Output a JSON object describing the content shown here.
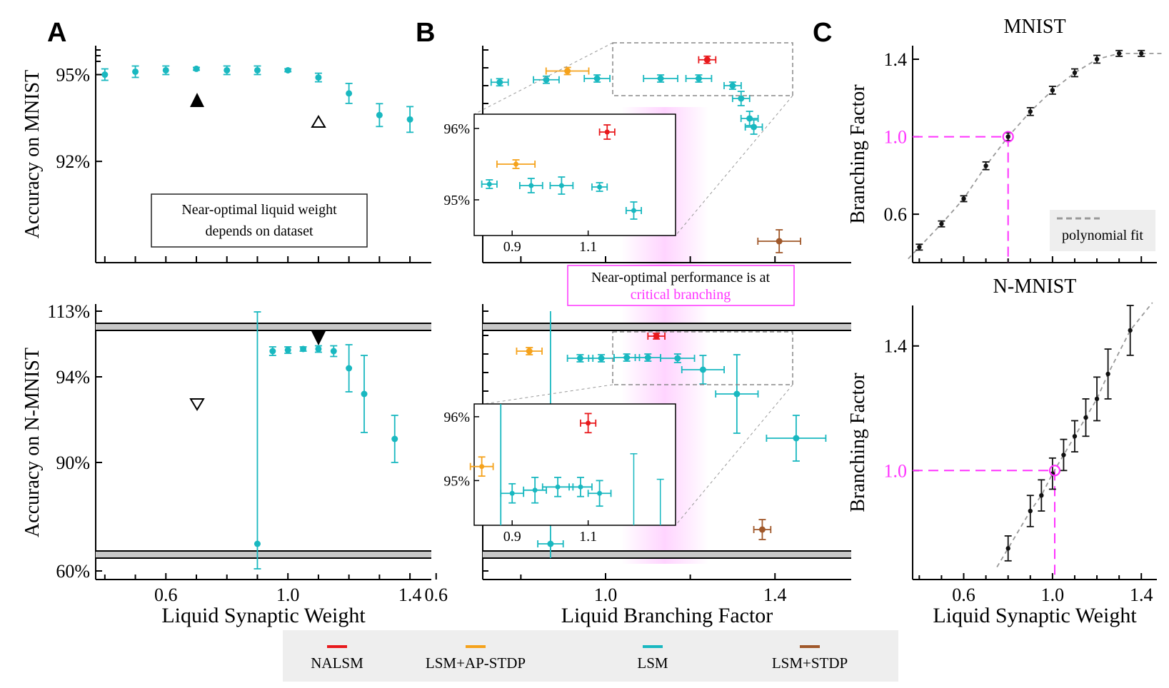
{
  "panel_labels": {
    "a": "A",
    "b": "B",
    "c": "C"
  },
  "colors": {
    "lsm": "#19b8c0",
    "nalsm": "#e8191c",
    "ap_stdp": "#f5a21b",
    "stdp": "#a0582a",
    "critical": "#ff33ff",
    "black": "#111111"
  },
  "annotations": {
    "dataset_box_line1": "Near-optimal liquid weight",
    "dataset_box_line2": "depends on dataset",
    "critical_box_line1": "Near-optimal performance is at",
    "critical_box_line2": "critical branching"
  },
  "legend": {
    "items": [
      {
        "label": "NALSM",
        "color": "#e8191c"
      },
      {
        "label": "LSM+AP-STDP",
        "color": "#f5a21b"
      },
      {
        "label": "LSM",
        "color": "#19b8c0"
      },
      {
        "label": "LSM+STDP",
        "color": "#a0582a"
      }
    ]
  },
  "chart_data": [
    {
      "id": "A-top",
      "type": "scatter",
      "title": "",
      "xlabel": "",
      "ylabel": "Accuracy on MNIST",
      "xlim": [
        0.37,
        1.47
      ],
      "ylim": [
        88.5,
        96.0
      ],
      "xticks": [
        0.6,
        1.0,
        1.4
      ],
      "yticks": [
        92,
        95
      ],
      "ytick_labels": [
        "92%",
        "95%"
      ],
      "series": [
        {
          "key": "lsm",
          "x": [
            0.4,
            0.5,
            0.6,
            0.7,
            0.8,
            0.9,
            1.0,
            1.1,
            1.2,
            1.3,
            1.4
          ],
          "y": [
            95.0,
            95.1,
            95.15,
            95.2,
            95.15,
            95.15,
            95.15,
            94.9,
            94.35,
            93.6,
            93.45
          ],
          "yerr": [
            0.2,
            0.2,
            0.15,
            0.05,
            0.15,
            0.15,
            0.05,
            0.15,
            0.35,
            0.4,
            0.45
          ]
        }
      ]
    },
    {
      "id": "A-bottom",
      "type": "scatter",
      "title": "",
      "xlabel": "Liquid Synaptic Weight",
      "ylabel": "Accuracy on N-MNIST",
      "xlim": [
        0.37,
        1.47
      ],
      "xticks": [
        0.6,
        1.0,
        1.4
      ],
      "xtick_labels": [
        "0.6",
        "1.0",
        "1.4"
      ],
      "yticks": [
        60,
        90,
        94,
        113
      ],
      "ytick_labels": [
        "60%",
        "90%",
        "94%",
        "113%"
      ],
      "axis_break": "broken y-axis between 60% and 90%, and between 94% and 113%",
      "series": [
        {
          "key": "lsm",
          "x": [
            0.9,
            0.95,
            1.0,
            1.05,
            1.1,
            1.15,
            1.2,
            1.25,
            1.35
          ],
          "y": [
            68.0,
            95.2,
            95.25,
            95.3,
            95.3,
            95.2,
            94.4,
            93.2,
            91.1
          ],
          "yerr": [
            10.0,
            0.2,
            0.15,
            0.1,
            0.15,
            0.25,
            1.1,
            1.8,
            1.1
          ]
        }
      ]
    },
    {
      "id": "B-top",
      "type": "scatter",
      "title": "",
      "xlabel": "",
      "ylabel": "",
      "xlim": [
        0.71,
        1.58
      ],
      "xticks": [
        0.6,
        1.0,
        1.4
      ],
      "inset": {
        "xlim": [
          0.8,
          1.33
        ],
        "ylim": [
          94.5,
          96.2
        ],
        "xticks": [
          0.9,
          1.1
        ],
        "xtick_labels": [
          "0.9",
          "1.1"
        ],
        "yticks": [
          95,
          96
        ],
        "ytick_labels": [
          "95%",
          "96%"
        ]
      },
      "series": [
        {
          "key": "lsm",
          "x": [
            0.75,
            0.86,
            0.98,
            1.13,
            1.22,
            1.3,
            1.32,
            1.34,
            1.35
          ],
          "y": [
            95.05,
            95.15,
            95.2,
            95.2,
            95.2,
            95.0,
            94.4,
            94.0,
            93.9
          ],
          "xerr": [
            0.02,
            0.03,
            0.03,
            0.04,
            0.03,
            0.02,
            0.02,
            0.02,
            0.02
          ]
        },
        {
          "key": "nalsm",
          "x": [
            1.24
          ],
          "y": [
            95.95
          ],
          "xerr": [
            0.02
          ]
        },
        {
          "key": "ap_stdp",
          "x": [
            0.91
          ],
          "y": [
            95.5
          ],
          "xerr": [
            0.05
          ]
        },
        {
          "key": "stdp",
          "x": [
            1.41
          ],
          "y": [
            88.5
          ],
          "xerr": [
            0.05
          ]
        }
      ]
    },
    {
      "id": "B-bottom",
      "type": "scatter",
      "title": "",
      "xlabel": "Liquid Branching Factor",
      "ylabel": "",
      "xlim": [
        0.71,
        1.58
      ],
      "xticks": [
        0.6,
        1.0,
        1.4
      ],
      "xtick_labels": [
        "0.6",
        "1.0",
        "1.4"
      ],
      "inset": {
        "xlim": [
          0.8,
          1.33
        ],
        "ylim": [
          94.3,
          96.2
        ],
        "xticks": [
          0.9,
          1.1
        ],
        "xtick_labels": [
          "0.9",
          "1.1"
        ],
        "yticks": [
          95,
          96
        ],
        "ytick_labels": [
          "95%",
          "96%"
        ]
      },
      "series": [
        {
          "key": "lsm",
          "x": [
            0.87,
            0.94,
            0.99,
            1.05,
            1.1,
            1.12,
            1.19,
            1.28,
            1.42
          ],
          "y": [
            68.0,
            94.8,
            94.85,
            94.9,
            94.9,
            94.8,
            94.0,
            92.5,
            90.2
          ],
          "xerr": [
            0.02,
            0.03,
            0.03,
            0.03,
            0.03,
            0.04,
            0.04,
            0.04,
            0.05
          ]
        },
        {
          "key": "nalsm",
          "x": [
            1.12
          ],
          "y": [
            95.9
          ],
          "xerr": [
            0.02
          ]
        },
        {
          "key": "ap_stdp",
          "x": [
            0.81
          ],
          "y": [
            95.2
          ],
          "xerr": [
            0.04
          ]
        },
        {
          "key": "stdp",
          "x": [
            1.36
          ],
          "y": [
            66.0
          ],
          "xerr": [
            0.02
          ]
        }
      ],
      "critical_band": {
        "center": 1.0,
        "halfwidth": 0.12
      }
    },
    {
      "id": "C-top",
      "type": "scatter",
      "title": "MNIST",
      "xlabel": "",
      "ylabel": "Branching Factor",
      "xlim": [
        0.37,
        1.47
      ],
      "ylim": [
        0.35,
        1.47
      ],
      "xticks": [
        0.6,
        1.0,
        1.4
      ],
      "yticks": [
        0.6,
        1.0,
        1.4
      ],
      "ytick_labels": [
        "0.6",
        "1.0",
        "1.4"
      ],
      "legend_entry": "polynomial fit",
      "series": [
        {
          "key": "points",
          "x": [
            0.4,
            0.5,
            0.6,
            0.7,
            0.8,
            0.9,
            1.0,
            1.1,
            1.2,
            1.3,
            1.4
          ],
          "y": [
            0.43,
            0.55,
            0.68,
            0.85,
            1.0,
            1.13,
            1.24,
            1.33,
            1.4,
            1.43,
            1.43
          ],
          "yerr": [
            0.015,
            0.015,
            0.015,
            0.02,
            0.02,
            0.02,
            0.02,
            0.02,
            0.02,
            0.015,
            0.015
          ]
        }
      ],
      "critical_marker": {
        "x": 0.8,
        "y": 1.0
      }
    },
    {
      "id": "C-bottom",
      "type": "scatter",
      "title": "N-MNIST",
      "xlabel": "Liquid Synaptic Weight",
      "ylabel": "Branching Factor",
      "xlim": [
        0.37,
        1.47
      ],
      "ylim": [
        0.65,
        1.53
      ],
      "xticks": [
        0.6,
        1.0,
        1.4
      ],
      "xtick_labels": [
        "0.6",
        "1.0",
        "1.4"
      ],
      "yticks": [
        1.0,
        1.4
      ],
      "ytick_labels": [
        "1.0",
        "1.4"
      ],
      "series": [
        {
          "key": "points",
          "x": [
            0.8,
            0.9,
            0.95,
            1.0,
            1.05,
            1.1,
            1.15,
            1.2,
            1.25,
            1.35
          ],
          "y": [
            0.75,
            0.87,
            0.92,
            0.99,
            1.05,
            1.11,
            1.17,
            1.23,
            1.31,
            1.45
          ],
          "yerr": [
            0.04,
            0.05,
            0.05,
            0.05,
            0.05,
            0.05,
            0.06,
            0.07,
            0.08,
            0.08
          ]
        }
      ],
      "critical_marker": {
        "x": 1.01,
        "y": 1.0
      }
    }
  ]
}
